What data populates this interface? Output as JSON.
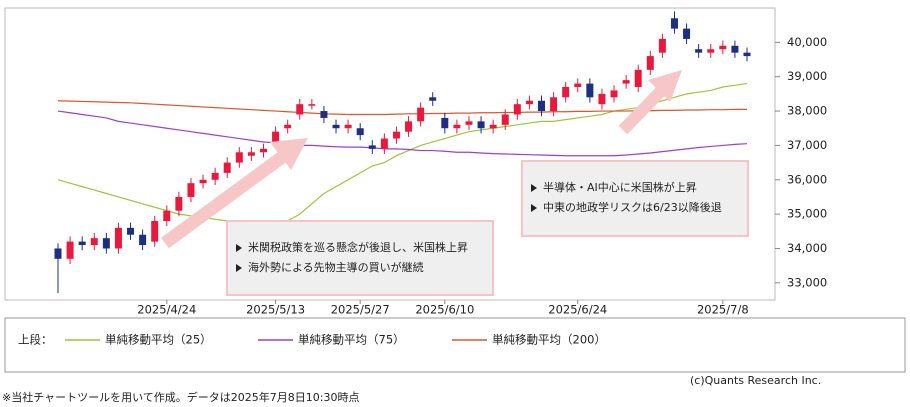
{
  "chart_data": {
    "type": "candlestick",
    "categories": [
      null,
      null,
      null,
      null,
      null,
      null,
      null,
      null,
      null,
      "2025/4/24",
      null,
      null,
      null,
      null,
      null,
      null,
      null,
      null,
      "2025/5/13",
      null,
      null,
      null,
      null,
      null,
      null,
      "2025/5/27",
      null,
      null,
      null,
      null,
      null,
      null,
      "2025/6/10",
      null,
      null,
      null,
      null,
      null,
      null,
      null,
      null,
      null,
      null,
      "2025/6/24",
      null,
      null,
      null,
      null,
      null,
      null,
      null,
      null,
      null,
      null,
      null,
      "2025/7/8",
      null,
      null
    ],
    "open": [
      34000,
      33700,
      34200,
      34100,
      34300,
      34000,
      34600,
      34400,
      34200,
      34800,
      35100,
      35500,
      35900,
      36000,
      36200,
      36500,
      36700,
      36800,
      37100,
      37500,
      37900,
      38200,
      38000,
      37600,
      37500,
      37500,
      37000,
      36900,
      37200,
      37400,
      37700,
      38400,
      37800,
      37500,
      37600,
      37700,
      37500,
      37600,
      37900,
      38200,
      38300,
      38000,
      38400,
      38700,
      38800,
      38200,
      38400,
      38800,
      38700,
      39200,
      39700,
      40700,
      40400,
      39800,
      39700,
      39800,
      39900,
      39700
    ],
    "high": [
      34150,
      34350,
      34350,
      34450,
      34450,
      34750,
      34750,
      34550,
      34950,
      35250,
      35650,
      36050,
      36150,
      36350,
      36650,
      36950,
      36950,
      37050,
      37550,
      37750,
      38350,
      38350,
      38150,
      37750,
      37750,
      37650,
      37150,
      37350,
      37550,
      37850,
      38250,
      38550,
      37950,
      37750,
      37850,
      37850,
      37750,
      38050,
      38350,
      38450,
      38450,
      38550,
      38850,
      38950,
      38950,
      38650,
      38750,
      39050,
      39350,
      39750,
      40250,
      40900,
      40550,
      39950,
      39950,
      40050,
      40050,
      39850
    ],
    "low": [
      32700,
      33550,
      33950,
      33950,
      33850,
      33850,
      34250,
      33950,
      34050,
      34650,
      34950,
      35350,
      35750,
      35850,
      36050,
      36350,
      36550,
      36650,
      36950,
      37350,
      37750,
      38050,
      37650,
      37350,
      37350,
      37150,
      36750,
      36750,
      37050,
      37250,
      37550,
      38150,
      37350,
      37350,
      37450,
      37350,
      37350,
      37450,
      37750,
      38050,
      37850,
      37850,
      38250,
      38550,
      38250,
      38050,
      38250,
      38650,
      38550,
      39050,
      39550,
      40250,
      39950,
      39550,
      39550,
      39650,
      39550,
      39450
    ],
    "close": [
      33700,
      34200,
      34100,
      34300,
      34000,
      34600,
      34400,
      34100,
      34800,
      35100,
      35500,
      35900,
      36000,
      36200,
      36500,
      36800,
      36800,
      36900,
      37400,
      37600,
      38200,
      38200,
      37800,
      37500,
      37600,
      37300,
      36900,
      37200,
      37400,
      37700,
      38100,
      38300,
      37500,
      37600,
      37700,
      37500,
      37600,
      37900,
      38200,
      38300,
      38000,
      38400,
      38700,
      38800,
      38400,
      38500,
      38600,
      38900,
      39200,
      39600,
      40100,
      40400,
      40100,
      39700,
      39800,
      39900,
      39700,
      39600
    ],
    "up_color": "#e8193c",
    "down_color": "#1c2f82",
    "moving_averages": [
      {
        "name": "単純移動平均（25）",
        "color": "#9cc63a",
        "values": [
          36000,
          35900,
          35800,
          35700,
          35600,
          35500,
          35400,
          35300,
          35200,
          35100,
          35000,
          34950,
          34900,
          34850,
          34800,
          34700,
          34650,
          34650,
          34700,
          34800,
          35000,
          35300,
          35600,
          35800,
          36000,
          36200,
          36400,
          36500,
          36700,
          36850,
          37000,
          37100,
          37200,
          37300,
          37400,
          37450,
          37500,
          37550,
          37600,
          37650,
          37700,
          37700,
          37750,
          37800,
          37850,
          37900,
          38000,
          38050,
          38100,
          38200,
          38300,
          38400,
          38500,
          38550,
          38600,
          38700,
          38750,
          38800
        ]
      },
      {
        "name": "単純移動平均（75）",
        "color": "#9b3fd1",
        "values": [
          38000,
          37950,
          37900,
          37850,
          37800,
          37700,
          37650,
          37600,
          37550,
          37500,
          37450,
          37400,
          37350,
          37300,
          37250,
          37200,
          37150,
          37100,
          37080,
          37050,
          37000,
          37000,
          36980,
          36960,
          36950,
          36950,
          36930,
          36900,
          36900,
          36880,
          36850,
          36850,
          36830,
          36800,
          36800,
          36780,
          36760,
          36750,
          36740,
          36730,
          36720,
          36710,
          36700,
          36700,
          36700,
          36700,
          36700,
          36720,
          36750,
          36780,
          36820,
          36860,
          36900,
          36940,
          36970,
          37000,
          37030,
          37050
        ]
      },
      {
        "name": "単純移動平均（200）",
        "color": "#e0552a",
        "values": [
          38300,
          38290,
          38280,
          38270,
          38260,
          38250,
          38240,
          38220,
          38200,
          38180,
          38160,
          38140,
          38120,
          38100,
          38080,
          38060,
          38040,
          38020,
          38000,
          37980,
          37960,
          37940,
          37920,
          37910,
          37900,
          37900,
          37900,
          37900,
          37910,
          37920,
          37920,
          37930,
          37930,
          37940,
          37940,
          37950,
          37950,
          37960,
          37960,
          37970,
          37970,
          37980,
          37980,
          37990,
          37990,
          38000,
          38000,
          38000,
          38010,
          38010,
          38020,
          38020,
          38030,
          38030,
          38040,
          38040,
          38050,
          38050
        ]
      }
    ],
    "ylim": [
      32500,
      41000
    ],
    "yticks": [
      {
        "value": 33000,
        "label": "33,000"
      },
      {
        "value": 34000,
        "label": "34,000"
      },
      {
        "value": 35000,
        "label": "35,000"
      },
      {
        "value": 36000,
        "label": "36,000"
      },
      {
        "value": 37000,
        "label": "37,000"
      },
      {
        "value": 38000,
        "label": "38,000"
      },
      {
        "value": 39000,
        "label": "39,000"
      },
      {
        "value": 40000,
        "label": "40,000"
      }
    ],
    "legend_prefix": "上段：",
    "annotations": [
      {
        "lines": [
          "米関税政策を巡る懸念が後退し、米国株上昇",
          "海外勢による先物主導の買いが継続"
        ]
      },
      {
        "lines": [
          "半導体・AI中心に米国株が上昇",
          "中東の地政学リスクは6/23以降後退"
        ]
      }
    ]
  },
  "footnote": "※当社チャートツールを用いて作成。データは2025年7月8日10:30時点",
  "copyright": "(c)Quants Research Inc."
}
